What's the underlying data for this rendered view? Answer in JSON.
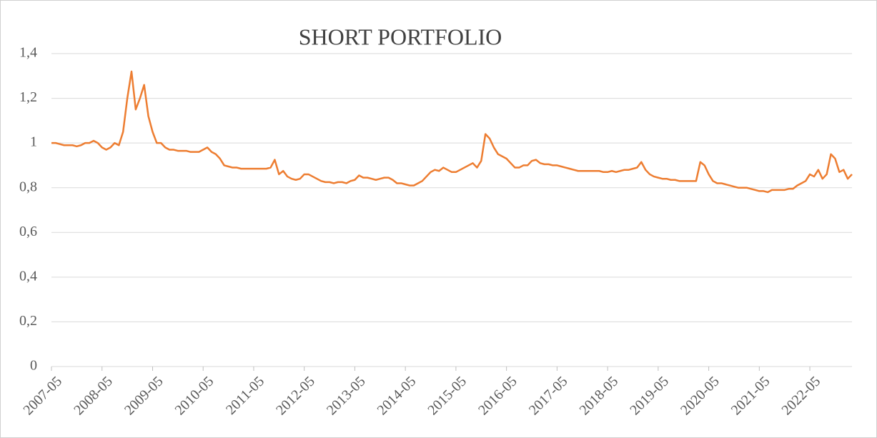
{
  "chart_data": {
    "type": "line",
    "title": "SHORT PORTFOLIO",
    "x": [
      "2007-05",
      "2007-06",
      "2007-07",
      "2007-08",
      "2007-09",
      "2007-10",
      "2007-11",
      "2007-12",
      "2008-01",
      "2008-02",
      "2008-03",
      "2008-04",
      "2008-05",
      "2008-06",
      "2008-07",
      "2008-08",
      "2008-09",
      "2008-10",
      "2008-11",
      "2008-12",
      "2009-01",
      "2009-02",
      "2009-03",
      "2009-04",
      "2009-05",
      "2009-06",
      "2009-07",
      "2009-08",
      "2009-09",
      "2009-10",
      "2009-11",
      "2009-12",
      "2010-01",
      "2010-02",
      "2010-03",
      "2010-04",
      "2010-05",
      "2010-06",
      "2010-07",
      "2010-08",
      "2010-09",
      "2010-10",
      "2010-11",
      "2010-12",
      "2011-01",
      "2011-02",
      "2011-03",
      "2011-04",
      "2011-05",
      "2011-06",
      "2011-07",
      "2011-08",
      "2011-09",
      "2011-10",
      "2011-11",
      "2011-12",
      "2012-01",
      "2012-02",
      "2012-03",
      "2012-04",
      "2012-05",
      "2012-06",
      "2012-07",
      "2012-08",
      "2012-09",
      "2012-10",
      "2012-11",
      "2012-12",
      "2013-01",
      "2013-02",
      "2013-03",
      "2013-04",
      "2013-05",
      "2013-06",
      "2013-07",
      "2013-08",
      "2013-09",
      "2013-10",
      "2013-11",
      "2013-12",
      "2014-01",
      "2014-02",
      "2014-03",
      "2014-04",
      "2014-05",
      "2014-06",
      "2014-07",
      "2014-08",
      "2014-09",
      "2014-10",
      "2014-11",
      "2014-12",
      "2015-01",
      "2015-02",
      "2015-03",
      "2015-04",
      "2015-05",
      "2015-06",
      "2015-07",
      "2015-08",
      "2015-09",
      "2015-10",
      "2015-11",
      "2015-12",
      "2016-01",
      "2016-02",
      "2016-03",
      "2016-04",
      "2016-05",
      "2016-06",
      "2016-07",
      "2016-08",
      "2016-09",
      "2016-10",
      "2016-11",
      "2016-12",
      "2017-01",
      "2017-02",
      "2017-03",
      "2017-04",
      "2017-05",
      "2017-06",
      "2017-07",
      "2017-08",
      "2017-09",
      "2017-10",
      "2017-11",
      "2017-12",
      "2018-01",
      "2018-02",
      "2018-03",
      "2018-04",
      "2018-05",
      "2018-06",
      "2018-07",
      "2018-08",
      "2018-09",
      "2018-10",
      "2018-11",
      "2018-12",
      "2019-01",
      "2019-02",
      "2019-03",
      "2019-04",
      "2019-05",
      "2019-06",
      "2019-07",
      "2019-08",
      "2019-09",
      "2019-10",
      "2019-11",
      "2019-12",
      "2020-01",
      "2020-02",
      "2020-03",
      "2020-04",
      "2020-05",
      "2020-06",
      "2020-07",
      "2020-08",
      "2020-09",
      "2020-10",
      "2020-11",
      "2020-12",
      "2021-01",
      "2021-02",
      "2021-03",
      "2021-04",
      "2021-05",
      "2021-06",
      "2021-07",
      "2021-08",
      "2021-09",
      "2021-10",
      "2021-11",
      "2021-12",
      "2022-01",
      "2022-02",
      "2022-03",
      "2022-04",
      "2022-05",
      "2022-06",
      "2022-07",
      "2022-08",
      "2022-09",
      "2022-10",
      "2022-11",
      "2022-12",
      "2023-01",
      "2023-02",
      "2023-03"
    ],
    "series": [
      {
        "name": "Short portfolio",
        "color": "#ed7d31",
        "values": [
          1.0,
          1.0,
          0.995,
          0.99,
          0.99,
          0.99,
          0.985,
          0.99,
          1.0,
          1.0,
          1.01,
          1.0,
          0.98,
          0.97,
          0.98,
          1.0,
          0.99,
          1.05,
          1.2,
          1.32,
          1.15,
          1.2,
          1.26,
          1.12,
          1.05,
          1.0,
          1.0,
          0.98,
          0.97,
          0.97,
          0.965,
          0.965,
          0.965,
          0.96,
          0.96,
          0.96,
          0.97,
          0.98,
          0.96,
          0.95,
          0.93,
          0.9,
          0.895,
          0.89,
          0.89,
          0.885,
          0.885,
          0.885,
          0.885,
          0.885,
          0.885,
          0.885,
          0.89,
          0.925,
          0.86,
          0.875,
          0.85,
          0.84,
          0.835,
          0.84,
          0.86,
          0.86,
          0.85,
          0.84,
          0.83,
          0.825,
          0.825,
          0.82,
          0.825,
          0.825,
          0.82,
          0.83,
          0.835,
          0.855,
          0.845,
          0.845,
          0.84,
          0.835,
          0.84,
          0.845,
          0.845,
          0.835,
          0.82,
          0.82,
          0.815,
          0.81,
          0.81,
          0.82,
          0.83,
          0.85,
          0.87,
          0.88,
          0.875,
          0.89,
          0.88,
          0.87,
          0.87,
          0.88,
          0.89,
          0.9,
          0.91,
          0.89,
          0.92,
          1.04,
          1.02,
          0.98,
          0.95,
          0.94,
          0.93,
          0.91,
          0.89,
          0.89,
          0.9,
          0.9,
          0.92,
          0.925,
          0.91,
          0.905,
          0.905,
          0.9,
          0.9,
          0.895,
          0.89,
          0.885,
          0.88,
          0.875,
          0.875,
          0.875,
          0.875,
          0.875,
          0.875,
          0.87,
          0.87,
          0.875,
          0.87,
          0.875,
          0.88,
          0.88,
          0.885,
          0.89,
          0.915,
          0.88,
          0.86,
          0.85,
          0.845,
          0.84,
          0.84,
          0.835,
          0.835,
          0.83,
          0.83,
          0.83,
          0.83,
          0.83,
          0.915,
          0.9,
          0.86,
          0.83,
          0.82,
          0.82,
          0.815,
          0.81,
          0.805,
          0.8,
          0.8,
          0.8,
          0.795,
          0.79,
          0.785,
          0.785,
          0.78,
          0.79,
          0.79,
          0.79,
          0.79,
          0.795,
          0.795,
          0.81,
          0.82,
          0.83,
          0.86,
          0.85,
          0.88,
          0.84,
          0.86,
          0.95,
          0.93,
          0.87,
          0.88,
          0.84,
          0.86
        ]
      }
    ],
    "xlim": [
      "2007-05",
      "2023-03"
    ],
    "xticks": [
      "2007-05",
      "2008-05",
      "2009-05",
      "2010-05",
      "2011-05",
      "2012-05",
      "2013-05",
      "2014-05",
      "2015-05",
      "2016-05",
      "2017-05",
      "2018-05",
      "2019-05",
      "2020-05",
      "2021-05",
      "2022-05"
    ],
    "ylim": [
      0,
      1.4
    ],
    "yticks": [
      0,
      {
        "value": 0.2,
        "label": "0,2"
      },
      {
        "value": 0.4,
        "label": "0,4"
      },
      {
        "value": 0.6,
        "label": "0,6"
      },
      {
        "value": 0.8,
        "label": "0,8"
      },
      1,
      {
        "value": 1.2,
        "label": "1,2"
      },
      {
        "value": 1.4,
        "label": "1,4"
      }
    ],
    "grid": true
  }
}
